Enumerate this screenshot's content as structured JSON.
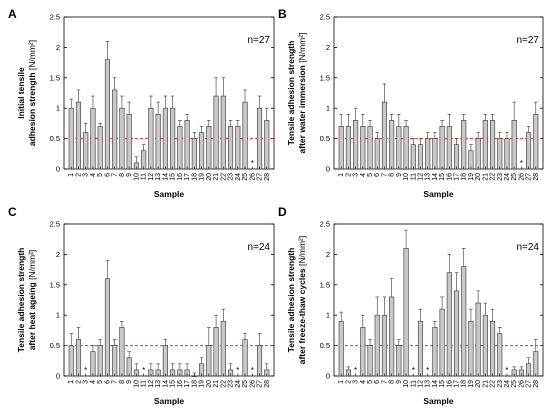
{
  "colors": {
    "bar_fill": "#c8c8c8",
    "bar_stroke": "#333333",
    "threshold_line": "#e8312a",
    "axis": "#000000"
  },
  "chart_data": [
    {
      "type": "bar",
      "panel": "A",
      "n_label": "n=27",
      "ylabel_line1": "Initial tensile",
      "ylabel_line2": "adhesion strength",
      "ylabel_unit": "[N/mm²]",
      "xlabel": "Sample",
      "ylim": [
        0,
        2.5
      ],
      "yticks": [
        "0",
        "0.5",
        "1",
        "1.5",
        "2",
        "2.5"
      ],
      "threshold": 0.5,
      "categories": [
        "1",
        "2",
        "3",
        "4",
        "5",
        "6",
        "7",
        "8",
        "9",
        "10",
        "11",
        "12",
        "13",
        "14",
        "15",
        "16",
        "17",
        "18",
        "19",
        "20",
        "21",
        "22",
        "23",
        "24",
        "25",
        "26",
        "27",
        "28"
      ],
      "values": [
        1.0,
        1.1,
        0.6,
        1.0,
        0.7,
        1.8,
        1.3,
        1.0,
        0.9,
        0.1,
        0.3,
        1.0,
        0.9,
        1.0,
        1.0,
        0.7,
        0.8,
        0.5,
        0.6,
        0.7,
        1.2,
        1.2,
        0.7,
        0.7,
        1.1,
        null,
        1.0,
        0.8
      ],
      "errors": [
        0.15,
        0.2,
        0.15,
        0.2,
        0.05,
        0.3,
        0.2,
        0.2,
        0.2,
        0.1,
        0.1,
        0.2,
        0.2,
        0.2,
        0.2,
        0.1,
        0.1,
        0.1,
        0.1,
        0.1,
        0.3,
        0.3,
        0.1,
        0.1,
        0.2,
        null,
        0.2,
        0.2
      ],
      "star_markers": [
        "26"
      ]
    },
    {
      "type": "bar",
      "panel": "B",
      "n_label": "n=27",
      "ylabel_line1": "Tensile adhesion strength",
      "ylabel_line2": "after water immersion",
      "ylabel_unit": "[N/mm²]",
      "xlabel": "Sample",
      "ylim": [
        0,
        2.5
      ],
      "yticks": [
        "0",
        "0.5",
        "1",
        "1.5",
        "2",
        "2.5"
      ],
      "threshold": 0.5,
      "categories": [
        "1",
        "2",
        "3",
        "4",
        "5",
        "6",
        "7",
        "8",
        "9",
        "10",
        "11",
        "12",
        "13",
        "14",
        "15",
        "16",
        "17",
        "18",
        "19",
        "20",
        "21",
        "22",
        "23",
        "24",
        "25",
        "26",
        "27",
        "28"
      ],
      "values": [
        0.7,
        0.7,
        0.8,
        0.7,
        0.7,
        0.5,
        1.1,
        0.8,
        0.7,
        0.7,
        0.4,
        0.4,
        0.5,
        0.5,
        0.7,
        0.7,
        0.4,
        0.8,
        0.3,
        0.5,
        0.8,
        0.8,
        0.5,
        0.5,
        0.8,
        null,
        0.6,
        0.9
      ],
      "errors": [
        0.2,
        0.2,
        0.2,
        0.2,
        0.1,
        0.1,
        0.3,
        0.1,
        0.2,
        0.1,
        0.1,
        0.1,
        0.1,
        0.1,
        0.1,
        0.2,
        0.1,
        0.1,
        0.1,
        0.1,
        0.1,
        0.1,
        0.1,
        0.1,
        0.3,
        null,
        0.1,
        0.2
      ],
      "star_markers": [
        "26"
      ]
    },
    {
      "type": "bar",
      "panel": "C",
      "n_label": "n=24",
      "ylabel_line1": "Tensile adhesion strength",
      "ylabel_line2": "after heat ageing",
      "ylabel_unit": "[N/mm²]",
      "xlabel": "Sample",
      "ylim": [
        0,
        2.5
      ],
      "yticks": [
        "0",
        "0.5",
        "1",
        "1.5",
        "2",
        "2.5"
      ],
      "threshold": 0.5,
      "categories": [
        "1",
        "2",
        "3",
        "4",
        "5",
        "6",
        "7",
        "8",
        "9",
        "10",
        "11",
        "12",
        "13",
        "14",
        "15",
        "16",
        "17",
        "18",
        "19",
        "20",
        "21",
        "22",
        "23",
        "24",
        "25",
        "26",
        "27",
        "28"
      ],
      "values": [
        0.5,
        0.6,
        null,
        0.4,
        0.5,
        1.6,
        0.5,
        0.8,
        0.3,
        0.1,
        null,
        0.1,
        0.1,
        0.5,
        0.1,
        0.1,
        0.1,
        0.0,
        0.2,
        0.5,
        0.8,
        0.9,
        0.1,
        null,
        0.6,
        null,
        0.5,
        0.1
      ],
      "errors": [
        0.2,
        0.2,
        null,
        0.1,
        0.1,
        0.3,
        0.1,
        0.1,
        0.1,
        0.1,
        null,
        0.1,
        0.1,
        0.1,
        0.1,
        0.1,
        0.1,
        0.05,
        0.1,
        0.3,
        0.2,
        0.2,
        0.1,
        null,
        0.1,
        null,
        0.2,
        0.1
      ],
      "star_markers": [
        "3",
        "11",
        "24",
        "26"
      ]
    },
    {
      "type": "bar",
      "panel": "D",
      "n_label": "n=24",
      "ylabel_line1": "Tensile adhesion strength",
      "ylabel_line2": "after freeze-thaw cycles",
      "ylabel_unit": "[N/mm²]",
      "xlabel": "Sample",
      "ylim": [
        0,
        2.5
      ],
      "yticks": [
        "0",
        "0.5",
        "1",
        "1.5",
        "2",
        "2.5"
      ],
      "threshold": 0.5,
      "categories": [
        "1",
        "2",
        "3",
        "4",
        "5",
        "6",
        "7",
        "8",
        "9",
        "10",
        "11",
        "12",
        "13",
        "14",
        "15",
        "16",
        "17",
        "18",
        "19",
        "20",
        "21",
        "22",
        "23",
        "24",
        "25",
        "26",
        "27",
        "28"
      ],
      "values": [
        0.9,
        0.1,
        null,
        0.8,
        0.5,
        1.0,
        1.0,
        1.3,
        0.5,
        2.1,
        null,
        0.9,
        null,
        0.8,
        1.1,
        1.7,
        1.4,
        1.8,
        0.9,
        1.2,
        1.0,
        0.9,
        0.7,
        null,
        0.1,
        0.1,
        0.2,
        0.4
      ],
      "errors": [
        0.15,
        0.05,
        null,
        0.2,
        0.1,
        0.3,
        0.3,
        0.3,
        0.1,
        0.3,
        null,
        0.2,
        null,
        0.1,
        0.2,
        0.3,
        0.3,
        0.3,
        0.2,
        0.2,
        0.2,
        0.2,
        0.1,
        null,
        0.05,
        0.05,
        0.1,
        0.2
      ],
      "star_markers": [
        "3",
        "11",
        "13",
        "24"
      ]
    }
  ]
}
